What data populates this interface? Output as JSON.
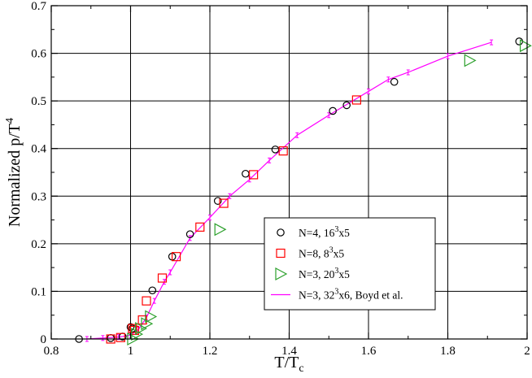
{
  "chart_data": {
    "type": "scatter",
    "title": "",
    "xlabel": {
      "main": "T/T",
      "sub": "c"
    },
    "ylabel": {
      "main": "Normalized p/T",
      "sup": "4"
    },
    "xlim": [
      0.8,
      2.0
    ],
    "ylim": [
      0.0,
      0.7
    ],
    "xticks": [
      0.8,
      1.0,
      1.2,
      1.4,
      1.6,
      1.8,
      2.0
    ],
    "xtick_labels": [
      "0.8",
      "1",
      "1.2",
      "1.4",
      "1.6",
      "1.8",
      "2"
    ],
    "yticks": [
      0.0,
      0.1,
      0.2,
      0.3,
      0.4,
      0.5,
      0.6,
      0.7
    ],
    "ytick_labels": [
      "0",
      "0.1",
      "0.2",
      "0.3",
      "0.4",
      "0.5",
      "0.6",
      "0.7"
    ],
    "grid": true,
    "legend_position": "lower-right",
    "series": [
      {
        "key": "n4",
        "legend": {
          "pre": "N=4, 16",
          "sup": "3",
          "post": "x5"
        },
        "marker": "circle",
        "color": "#000000",
        "points": [
          [
            0.87,
            0.0
          ],
          [
            0.95,
            0.002
          ],
          [
            0.98,
            0.005
          ],
          [
            1.0,
            0.025
          ],
          [
            1.005,
            0.022
          ],
          [
            1.055,
            0.102
          ],
          [
            1.105,
            0.173
          ],
          [
            1.15,
            0.22
          ],
          [
            1.22,
            0.29
          ],
          [
            1.29,
            0.347
          ],
          [
            1.365,
            0.398
          ],
          [
            1.51,
            0.479
          ],
          [
            1.545,
            0.491
          ],
          [
            1.665,
            0.54
          ],
          [
            1.98,
            0.625
          ]
        ]
      },
      {
        "key": "n8",
        "legend": {
          "pre": "N=8, 8",
          "sup": "3",
          "post": "x5"
        },
        "marker": "square",
        "color": "#ff0000",
        "points": [
          [
            0.95,
            0.0
          ],
          [
            0.975,
            0.003
          ],
          [
            1.005,
            0.022
          ],
          [
            1.01,
            0.018
          ],
          [
            1.03,
            0.04
          ],
          [
            1.04,
            0.08
          ],
          [
            1.08,
            0.128
          ],
          [
            1.115,
            0.173
          ],
          [
            1.175,
            0.235
          ],
          [
            1.235,
            0.285
          ],
          [
            1.31,
            0.345
          ],
          [
            1.385,
            0.395
          ],
          [
            1.57,
            0.502
          ]
        ]
      },
      {
        "key": "n3",
        "legend": {
          "pre": "N=3, 20",
          "sup": "3",
          "post": "x5"
        },
        "marker": "triangle-right",
        "color": "#2ca02c",
        "points": [
          [
            1.005,
            0.0
          ],
          [
            1.015,
            0.01
          ],
          [
            1.025,
            0.022
          ],
          [
            1.04,
            0.032
          ],
          [
            1.05,
            0.047
          ],
          [
            1.225,
            0.23
          ],
          [
            1.855,
            0.585
          ],
          [
            1.995,
            0.616
          ]
        ]
      },
      {
        "key": "boyd",
        "legend": {
          "pre": "N=3, 32",
          "sup": "3",
          "post": "x6, Boyd et al."
        },
        "marker": "line",
        "color": "#ff00ff",
        "points": [
          [
            0.89,
            0.0
          ],
          [
            0.93,
            0.002
          ],
          [
            0.97,
            0.004
          ],
          [
            1.0,
            0.008
          ],
          [
            1.02,
            0.02
          ],
          [
            1.04,
            0.045
          ],
          [
            1.06,
            0.08
          ],
          [
            1.085,
            0.12
          ],
          [
            1.1,
            0.14
          ],
          [
            1.15,
            0.212
          ],
          [
            1.2,
            0.255
          ],
          [
            1.25,
            0.3
          ],
          [
            1.3,
            0.335
          ],
          [
            1.35,
            0.375
          ],
          [
            1.42,
            0.428
          ],
          [
            1.5,
            0.47
          ],
          [
            1.6,
            0.52
          ],
          [
            1.65,
            0.545
          ],
          [
            1.7,
            0.56
          ],
          [
            1.8,
            0.594
          ],
          [
            1.91,
            0.623
          ]
        ]
      }
    ]
  }
}
